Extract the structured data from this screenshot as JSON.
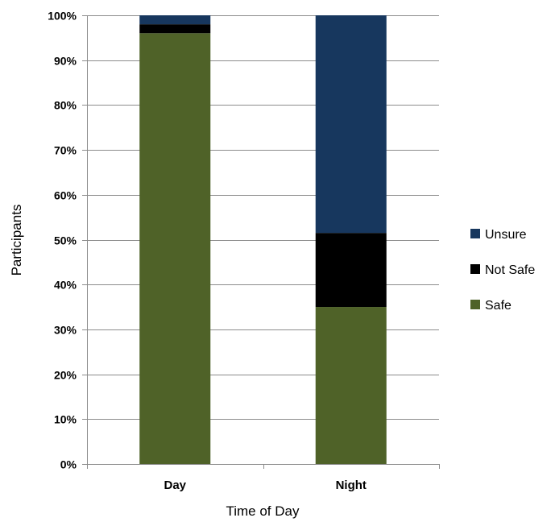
{
  "chart_data": {
    "type": "bar",
    "stacked": true,
    "categories": [
      "Day",
      "Night"
    ],
    "series": [
      {
        "name": "Safe",
        "values": [
          96,
          35
        ],
        "color": "#4f6228"
      },
      {
        "name": "Not Safe",
        "values": [
          2,
          16.5
        ],
        "color": "#000000"
      },
      {
        "name": "Unsure",
        "values": [
          2,
          48.5
        ],
        "color": "#17375e"
      }
    ],
    "xlabel": "Time of Day",
    "ylabel": "Participants",
    "ylim": [
      0,
      100
    ],
    "y_ticks": [
      "0%",
      "10%",
      "20%",
      "30%",
      "40%",
      "50%",
      "60%",
      "70%",
      "80%",
      "90%",
      "100%"
    ],
    "legend_order": [
      "Unsure",
      "Not Safe",
      "Safe"
    ],
    "legend_position": "right",
    "grid": true
  }
}
